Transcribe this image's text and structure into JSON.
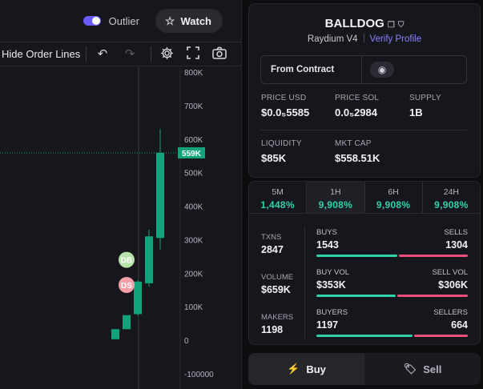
{
  "top": {
    "outlier_label": "Outlier",
    "watch_label": "Watch"
  },
  "toolbar": {
    "hide_order_lines": "Hide Order Lines",
    "icons": [
      "undo-icon",
      "redo-icon",
      "settings-icon",
      "fullscreen-icon",
      "camera-icon"
    ]
  },
  "chart": {
    "y_ticks": [
      "800K",
      "700K",
      "600K",
      "500K",
      "400K",
      "300K",
      "200K",
      "100K",
      "0",
      "-100000"
    ],
    "current_price_label": "559K",
    "markers": [
      {
        "label": "DB",
        "color": "#b6e3a9"
      },
      {
        "label": "DS",
        "color": "#f5a0a8"
      }
    ],
    "colors": {
      "up": "#12a37a",
      "price_line": "#12a37a"
    }
  },
  "chart_data": {
    "type": "candlestick",
    "ylim": [
      -100000,
      800000
    ],
    "current_price": 559000,
    "candles": [
      {
        "open": 3000,
        "close": 33000,
        "low": 3000,
        "high": 33000
      },
      {
        "open": 33000,
        "close": 75000,
        "low": 33000,
        "high": 75000
      },
      {
        "open": 78000,
        "close": 175000,
        "low": 75000,
        "high": 178000
      },
      {
        "open": 170000,
        "close": 310000,
        "low": 160000,
        "high": 330000
      },
      {
        "open": 305000,
        "close": 559000,
        "low": 270000,
        "high": 630000
      }
    ],
    "trade_markers": [
      {
        "label": "DB",
        "price": 240000
      },
      {
        "label": "DS",
        "price": 165000
      }
    ]
  },
  "token": {
    "name": "BALLDOG",
    "pair": "Raydium V4",
    "verify_label": "Verify Profile",
    "contract_label": "From Contract",
    "stats": [
      {
        "key": "PRICE USD",
        "value": "$0.0₅5585"
      },
      {
        "key": "PRICE SOL",
        "value": "0.0₅2984"
      },
      {
        "key": "SUPPLY",
        "value": "1B"
      },
      {
        "key": "LIQUIDITY",
        "value": "$85K"
      },
      {
        "key": "MKT CAP",
        "value": "$558.51K"
      }
    ]
  },
  "periods": [
    {
      "label": "5M",
      "value": "1,448%"
    },
    {
      "label": "1H",
      "value": "9,908%"
    },
    {
      "label": "6H",
      "value": "9,908%"
    },
    {
      "label": "24H",
      "value": "9,908%"
    }
  ],
  "tx": {
    "txns": {
      "key": "TXNS",
      "value": "2847",
      "left_key": "BUYS",
      "left_value": "1543",
      "right_key": "SELLS",
      "right_value": "1304",
      "buy_share": 0.54
    },
    "volume": {
      "key": "VOLUME",
      "value": "$659K",
      "left_key": "BUY VOL",
      "left_value": "$353K",
      "right_key": "SELL VOL",
      "right_value": "$306K",
      "buy_share": 0.54
    },
    "makers": {
      "key": "MAKERS",
      "value": "1198",
      "left_key": "BUYERS",
      "left_value": "1197",
      "right_key": "SELLERS",
      "right_value": "664",
      "buy_share": 0.64
    }
  },
  "trade": {
    "buy_label": "Buy",
    "sell_label": "Sell"
  }
}
